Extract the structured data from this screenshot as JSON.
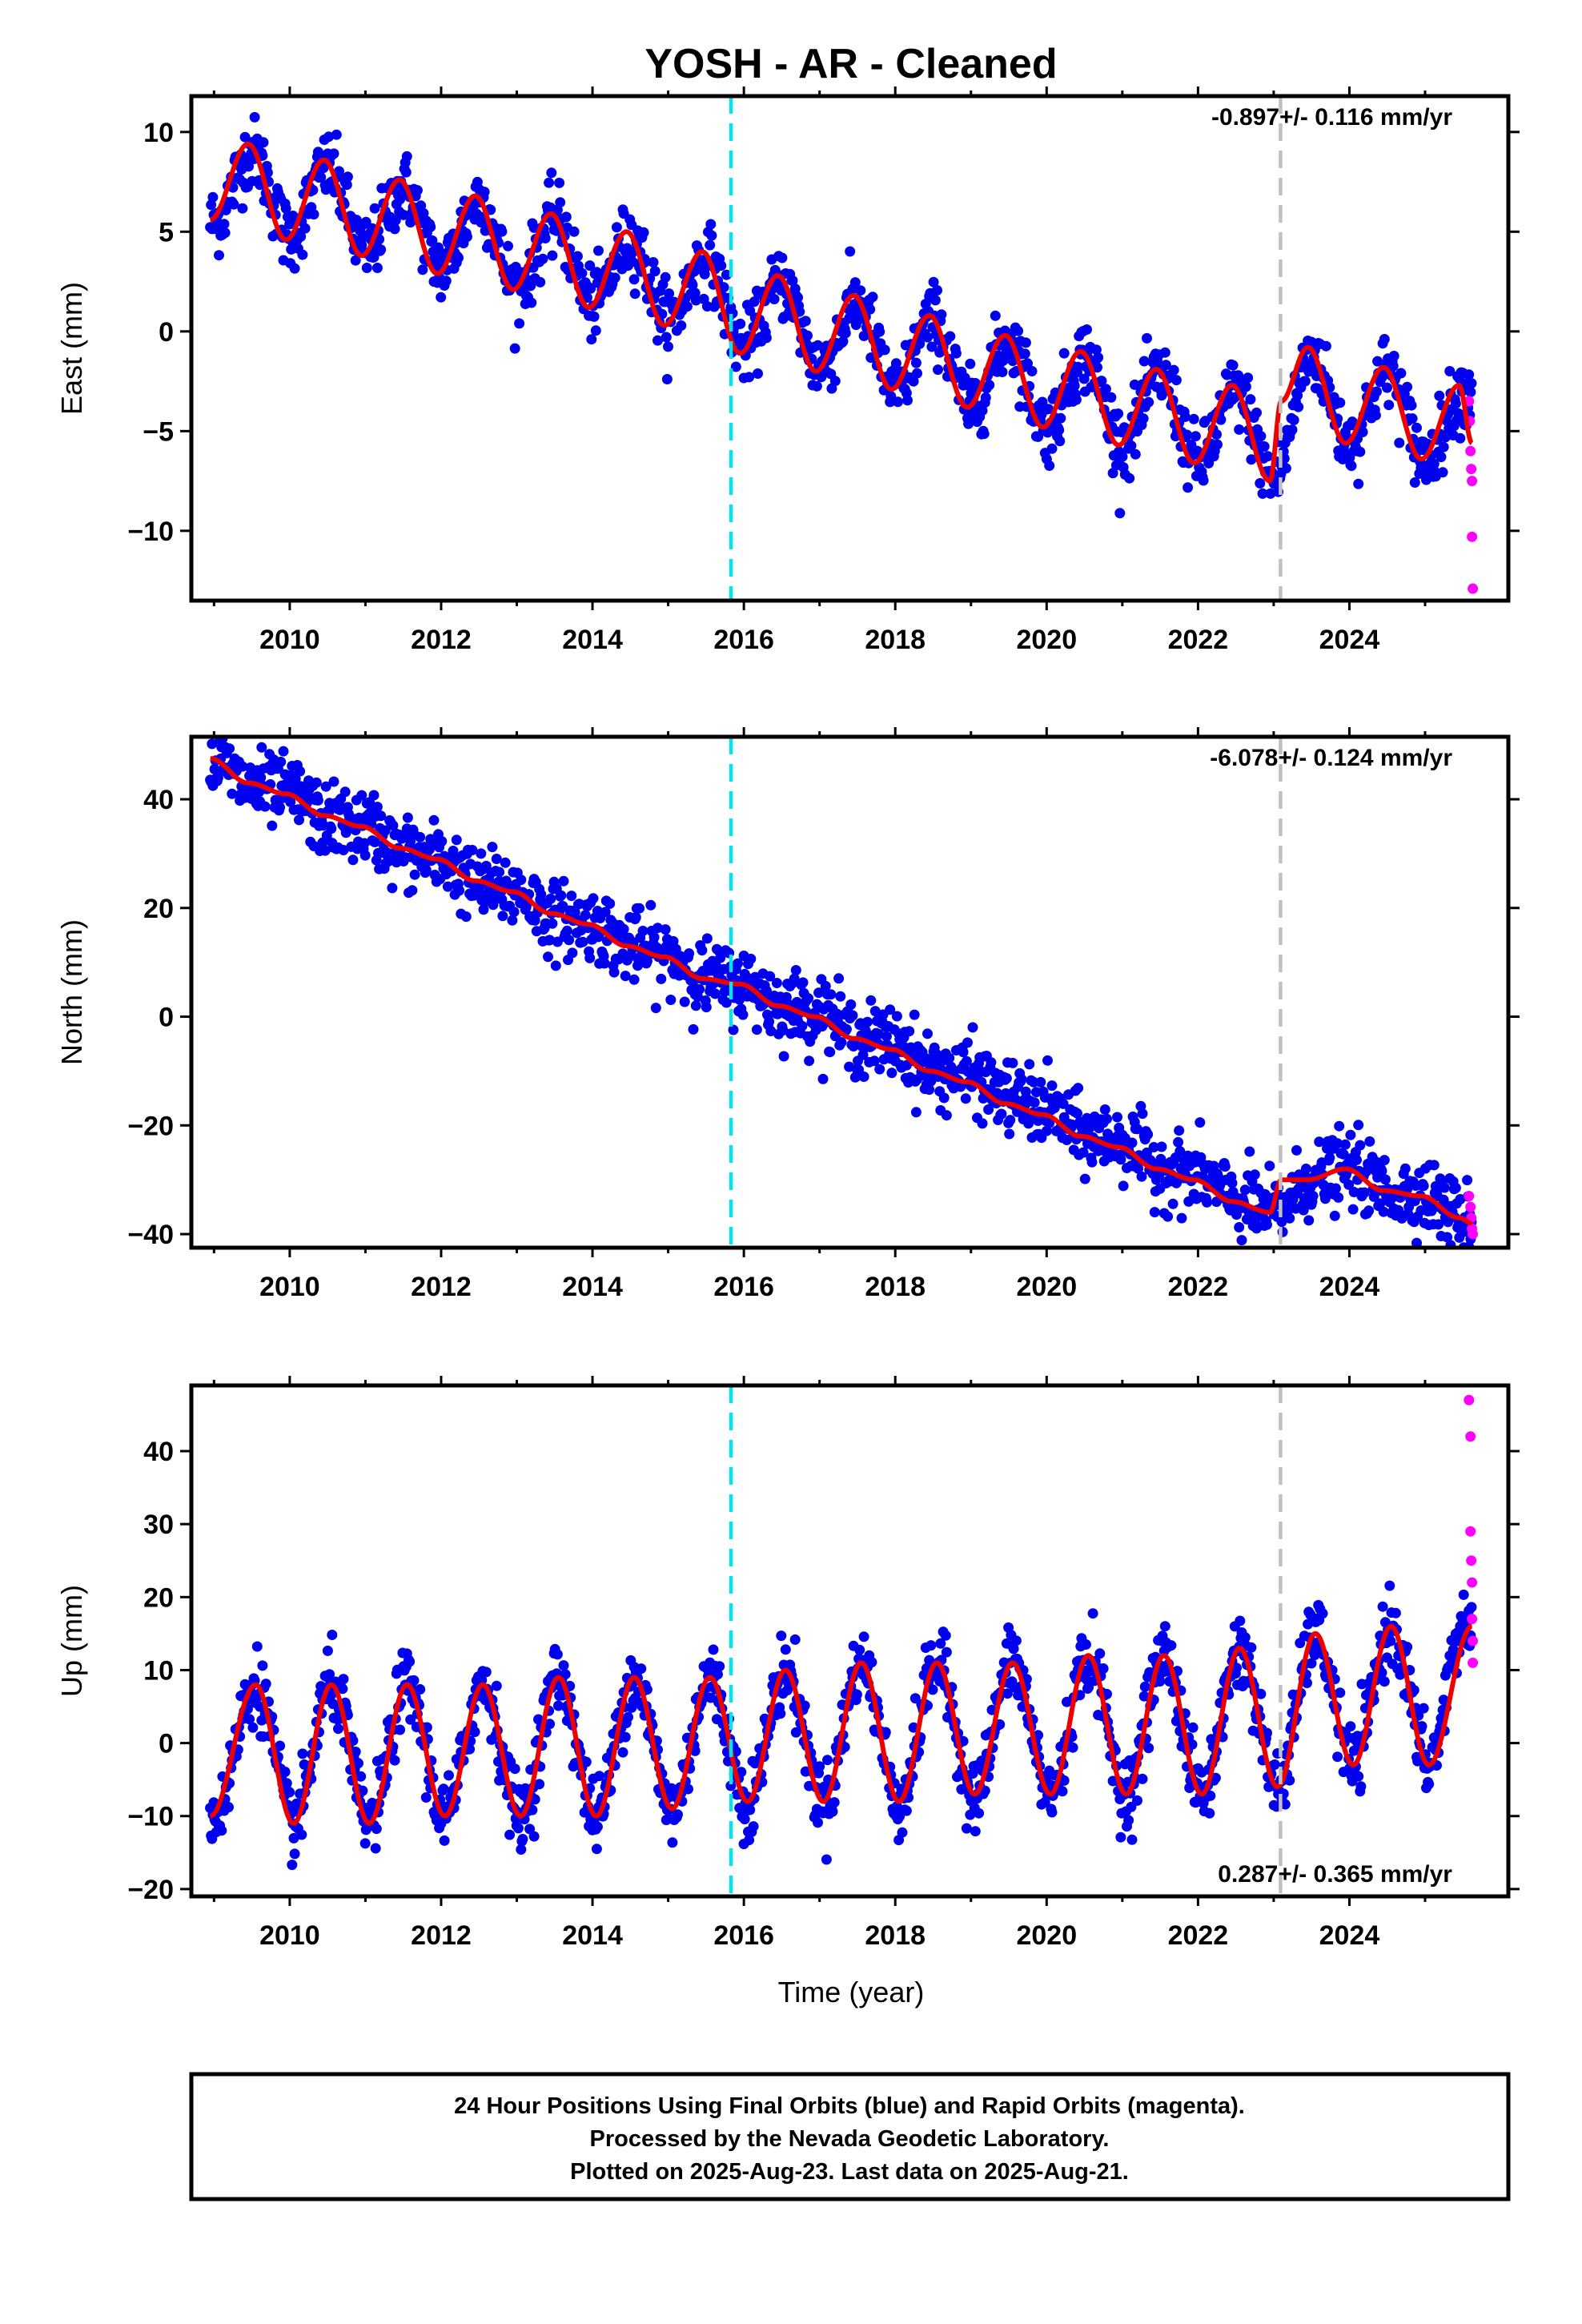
{
  "title": "YOSH  - AR - Cleaned",
  "xlabel": "Time (year)",
  "footer": {
    "line1": "24 Hour Positions Using Final Orbits (blue) and Rapid Orbits (magenta).",
    "line2": "Processed by the Nevada Geodetic Laboratory.",
    "line3": "Plotted on 2025-Aug-23. Last data on 2025-Aug-21."
  },
  "colors": {
    "final_points": "#0000ee",
    "rapid_points": "#ff00ff",
    "model": "#ee0000",
    "equipment_change": "#00e5ee",
    "other_event": "#c0c0c0",
    "frame": "#000000"
  },
  "chart_data": [
    {
      "type": "scatter",
      "component": "east",
      "ylabel": "East (mm)",
      "rate_text": "-0.897+/- 0.116 mm/yr",
      "rate_position": "top-right",
      "xlim": [
        2008.7,
        2026.1
      ],
      "ylim": [
        -13.5,
        11.8
      ],
      "xticks": [
        2010,
        2012,
        2014,
        2016,
        2018,
        2020,
        2022,
        2024
      ],
      "yticks": [
        10,
        5,
        0,
        -5,
        -10
      ],
      "vlines": [
        {
          "x": 2015.83,
          "style": "cyan-dashed"
        },
        {
          "x": 2023.09,
          "style": "gray-dashed"
        }
      ],
      "series": [
        {
          "role": "final",
          "x": [
            2009.0,
            2009.5,
            2010.0,
            2010.5,
            2011.0,
            2011.5,
            2012.0,
            2012.5,
            2013.0,
            2013.5,
            2014.0,
            2014.5,
            2015.0,
            2015.5,
            2016.0,
            2016.5,
            2017.0,
            2017.5,
            2018.0,
            2018.5,
            2019.0,
            2019.5,
            2020.0,
            2020.5,
            2021.0,
            2021.5,
            2022.0,
            2022.5,
            2023.0,
            2023.5,
            2024.0,
            2024.5,
            2025.0,
            2025.5
          ],
          "y": [
            5.5,
            9.0,
            4.8,
            8.2,
            4.0,
            7.2,
            3.2,
            6.6,
            2.2,
            5.6,
            1.4,
            4.6,
            0.6,
            3.6,
            -0.8,
            2.4,
            -1.8,
            1.4,
            -3.0,
            0.6,
            -3.8,
            -0.4,
            -4.8,
            -1.2,
            -5.6,
            -2.2,
            -6.6,
            -3.0,
            -7.4,
            -1.2,
            -5.6,
            -2.0,
            -6.4,
            -3.0
          ]
        },
        {
          "role": "rapid",
          "x": [
            2025.58,
            2025.59,
            2025.6,
            2025.61,
            2025.62,
            2025.62,
            2025.63
          ],
          "y": [
            -3.5,
            -4.5,
            -6.0,
            -6.9,
            -7.5,
            -10.3,
            -12.9
          ]
        },
        {
          "role": "model",
          "x": [
            2008.95,
            2009.45,
            2009.95,
            2010.45,
            2010.95,
            2011.45,
            2011.95,
            2012.45,
            2012.95,
            2013.45,
            2013.95,
            2014.45,
            2014.95,
            2015.45,
            2015.95,
            2016.45,
            2016.95,
            2017.45,
            2017.95,
            2018.45,
            2018.95,
            2019.45,
            2019.95,
            2020.45,
            2020.95,
            2021.45,
            2021.95,
            2022.45,
            2022.95,
            2023.1,
            2023.45,
            2023.95,
            2024.45,
            2024.95,
            2025.45,
            2025.62
          ],
          "y": [
            5.6,
            9.4,
            4.6,
            8.6,
            3.8,
            7.6,
            2.9,
            6.8,
            2.1,
            5.9,
            1.2,
            5.0,
            0.3,
            4.0,
            -1.1,
            2.8,
            -2.0,
            1.8,
            -2.9,
            0.8,
            -3.8,
            -0.2,
            -4.8,
            -1.0,
            -5.7,
            -1.9,
            -6.6,
            -2.7,
            -7.5,
            -3.5,
            -0.8,
            -5.6,
            -1.8,
            -6.4,
            -2.7,
            -5.6
          ]
        }
      ]
    },
    {
      "type": "scatter",
      "component": "north",
      "ylabel": "North (mm)",
      "rate_text": "-6.078+/- 0.124 mm/yr",
      "rate_position": "top-right",
      "xlim": [
        2008.7,
        2026.1
      ],
      "ylim": [
        -42.5,
        51.5
      ],
      "xticks": [
        2010,
        2012,
        2014,
        2016,
        2018,
        2020,
        2022,
        2024
      ],
      "yticks": [
        40,
        20,
        0,
        -20,
        -40
      ],
      "vlines": [
        {
          "x": 2015.83,
          "style": "cyan-dashed"
        },
        {
          "x": 2023.09,
          "style": "gray-dashed"
        }
      ],
      "series": [
        {
          "role": "final",
          "x": [
            2009.0,
            2009.5,
            2010.0,
            2010.5,
            2011.0,
            2011.5,
            2012.0,
            2012.5,
            2013.0,
            2013.5,
            2014.0,
            2014.5,
            2015.0,
            2015.5,
            2016.0,
            2016.5,
            2017.0,
            2017.5,
            2018.0,
            2018.5,
            2019.0,
            2019.5,
            2020.0,
            2020.5,
            2021.0,
            2021.5,
            2022.0,
            2022.5,
            2023.0,
            2023.5,
            2024.0,
            2024.5,
            2025.0,
            2025.5
          ],
          "y": [
            47,
            42,
            41,
            36,
            35,
            30,
            29,
            24,
            23,
            18,
            17,
            13,
            11,
            7,
            6,
            2,
            1,
            -4,
            -5,
            -10,
            -11,
            -15,
            -17,
            -22,
            -23,
            -28,
            -29,
            -34,
            -36,
            -30,
            -28,
            -32,
            -33,
            -37
          ]
        },
        {
          "role": "rapid",
          "x": [
            2025.58,
            2025.6,
            2025.61,
            2025.62,
            2025.63
          ],
          "y": [
            -33,
            -35,
            -37,
            -39,
            -40
          ]
        },
        {
          "role": "model",
          "x": [
            2008.95,
            2009.45,
            2009.95,
            2010.45,
            2010.95,
            2011.45,
            2011.95,
            2012.45,
            2012.95,
            2013.45,
            2013.95,
            2014.45,
            2014.95,
            2015.45,
            2015.95,
            2016.45,
            2016.95,
            2017.45,
            2017.95,
            2018.45,
            2018.95,
            2019.45,
            2019.95,
            2020.45,
            2020.95,
            2021.45,
            2021.95,
            2022.45,
            2022.95,
            2023.1,
            2023.45,
            2023.95,
            2024.45,
            2024.95,
            2025.45,
            2025.62
          ],
          "y": [
            47.5,
            43,
            41,
            37,
            35,
            31,
            29,
            25,
            23,
            19,
            17,
            13,
            11,
            7,
            6,
            2,
            0,
            -4,
            -6,
            -10,
            -12,
            -16,
            -18,
            -22,
            -24,
            -28,
            -30,
            -34,
            -36,
            -30,
            -30,
            -28,
            -32,
            -33,
            -37,
            -38
          ]
        }
      ]
    },
    {
      "type": "scatter",
      "component": "up",
      "ylabel": "Up (mm)",
      "rate_text": "0.287+/- 0.365 mm/yr",
      "rate_position": "bottom-right",
      "xlim": [
        2008.7,
        2026.1
      ],
      "ylim": [
        -21,
        49
      ],
      "xticks": [
        2010,
        2012,
        2014,
        2016,
        2018,
        2020,
        2022,
        2024
      ],
      "yticks": [
        40,
        30,
        20,
        10,
        0,
        -10,
        -20
      ],
      "vlines": [
        {
          "x": 2015.83,
          "style": "cyan-dashed"
        },
        {
          "x": 2023.09,
          "style": "gray-dashed"
        }
      ],
      "series": [
        {
          "role": "final",
          "x": [
            2009.0,
            2009.55,
            2010.05,
            2010.55,
            2011.05,
            2011.55,
            2012.05,
            2012.55,
            2013.05,
            2013.55,
            2014.05,
            2014.55,
            2015.05,
            2015.55,
            2016.05,
            2016.55,
            2017.05,
            2017.55,
            2018.05,
            2018.55,
            2019.05,
            2019.55,
            2020.05,
            2020.55,
            2021.05,
            2021.55,
            2022.05,
            2022.55,
            2023.05,
            2023.55,
            2024.05,
            2024.55,
            2025.05,
            2025.5
          ],
          "y": [
            -10,
            8,
            -11,
            8,
            -11,
            8,
            -10,
            8,
            -10,
            9,
            -10,
            9,
            -9,
            9,
            -8,
            10,
            -8,
            11,
            -8,
            11,
            -7,
            11,
            -7,
            12,
            -7,
            12,
            -7,
            13,
            -6,
            15,
            -3,
            16,
            -3,
            16
          ]
        },
        {
          "role": "rapid",
          "x": [
            2025.58,
            2025.6,
            2025.6,
            2025.61,
            2025.62,
            2025.62,
            2025.63,
            2025.63
          ],
          "y": [
            47,
            42,
            29,
            25,
            22,
            17,
            14,
            11
          ]
        },
        {
          "role": "model",
          "x": [
            2008.95,
            2009.55,
            2010.05,
            2010.55,
            2011.05,
            2011.55,
            2012.05,
            2012.55,
            2013.05,
            2013.55,
            2014.05,
            2014.55,
            2015.05,
            2015.55,
            2016.05,
            2016.55,
            2017.05,
            2017.55,
            2018.05,
            2018.55,
            2019.05,
            2019.55,
            2020.05,
            2020.55,
            2021.05,
            2021.55,
            2022.05,
            2022.55,
            2023.05,
            2023.55,
            2024.05,
            2024.55,
            2025.05,
            2025.62
          ],
          "y": [
            -10,
            8,
            -11,
            8,
            -11,
            8,
            -10,
            8,
            -10,
            9,
            -10,
            9,
            -9,
            9,
            -8,
            10,
            -8,
            11,
            -8,
            11,
            -7,
            11,
            -7,
            12,
            -7,
            12,
            -7,
            13,
            -6,
            15,
            -3,
            16,
            -3,
            16
          ]
        }
      ]
    }
  ]
}
